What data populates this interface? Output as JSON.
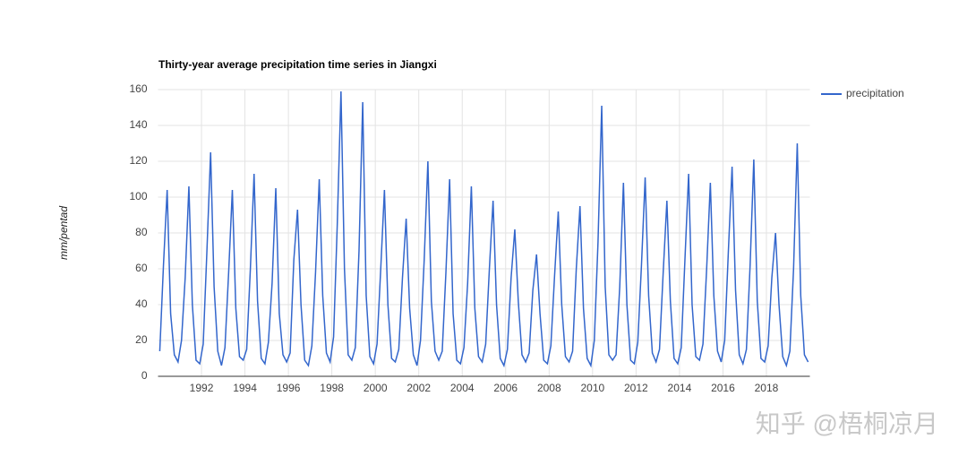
{
  "chart_data": {
    "type": "line",
    "title": "Thirty-year average precipitation time series in Jiangxi",
    "y_label": "mm/pentad",
    "watermark": "知乎 @梧桐凉月",
    "xlim": [
      1990,
      2020
    ],
    "xticks": [
      1992,
      1994,
      1996,
      1998,
      2000,
      2002,
      2004,
      2006,
      2008,
      2010,
      2012,
      2014,
      2016,
      2018
    ],
    "ylim": [
      0,
      160
    ],
    "yticks": [
      0,
      20,
      40,
      60,
      80,
      100,
      120,
      140,
      160
    ],
    "grid": true,
    "legend": "right",
    "x": [
      1990.08,
      1990.25,
      1990.42,
      1990.58,
      1990.75,
      1990.92,
      1991.08,
      1991.25,
      1991.42,
      1991.58,
      1991.75,
      1991.92,
      1992.08,
      1992.25,
      1992.42,
      1992.58,
      1992.75,
      1992.92,
      1993.08,
      1993.25,
      1993.42,
      1993.58,
      1993.75,
      1993.92,
      1994.08,
      1994.25,
      1994.42,
      1994.58,
      1994.75,
      1994.92,
      1995.08,
      1995.25,
      1995.42,
      1995.58,
      1995.75,
      1995.92,
      1996.08,
      1996.25,
      1996.42,
      1996.58,
      1996.75,
      1996.92,
      1997.08,
      1997.25,
      1997.42,
      1997.58,
      1997.75,
      1997.92,
      1998.08,
      1998.25,
      1998.42,
      1998.58,
      1998.75,
      1998.92,
      1999.08,
      1999.25,
      1999.42,
      1999.58,
      1999.75,
      1999.92,
      2000.08,
      2000.25,
      2000.42,
      2000.58,
      2000.75,
      2000.92,
      2001.08,
      2001.25,
      2001.42,
      2001.58,
      2001.75,
      2001.92,
      2002.08,
      2002.25,
      2002.42,
      2002.58,
      2002.75,
      2002.92,
      2003.08,
      2003.25,
      2003.42,
      2003.58,
      2003.75,
      2003.92,
      2004.08,
      2004.25,
      2004.42,
      2004.58,
      2004.75,
      2004.92,
      2005.08,
      2005.25,
      2005.42,
      2005.58,
      2005.75,
      2005.92,
      2006.08,
      2006.25,
      2006.42,
      2006.58,
      2006.75,
      2006.92,
      2007.08,
      2007.25,
      2007.42,
      2007.58,
      2007.75,
      2007.92,
      2008.08,
      2008.25,
      2008.42,
      2008.58,
      2008.75,
      2008.92,
      2009.08,
      2009.25,
      2009.42,
      2009.58,
      2009.75,
      2009.92,
      2010.08,
      2010.25,
      2010.42,
      2010.58,
      2010.75,
      2010.92,
      2011.08,
      2011.25,
      2011.42,
      2011.58,
      2011.75,
      2011.92,
      2012.08,
      2012.25,
      2012.42,
      2012.58,
      2012.75,
      2012.92,
      2013.08,
      2013.25,
      2013.42,
      2013.58,
      2013.75,
      2013.92,
      2014.08,
      2014.25,
      2014.42,
      2014.58,
      2014.75,
      2014.92,
      2015.08,
      2015.25,
      2015.42,
      2015.58,
      2015.75,
      2015.92,
      2016.08,
      2016.25,
      2016.42,
      2016.58,
      2016.75,
      2016.92,
      2017.08,
      2017.25,
      2017.42,
      2017.58,
      2017.75,
      2017.92,
      2018.08,
      2018.25,
      2018.42,
      2018.58,
      2018.75,
      2018.92,
      2019.08,
      2019.25,
      2019.42,
      2019.58,
      2019.75,
      2019.92
    ],
    "series": [
      {
        "name": "precipitation",
        "color": "#3366cc",
        "values": [
          14,
          62,
          104,
          35,
          12,
          8,
          20,
          55,
          106,
          40,
          9,
          7,
          18,
          70,
          125,
          50,
          14,
          6,
          16,
          58,
          104,
          38,
          11,
          9,
          15,
          60,
          113,
          42,
          10,
          7,
          19,
          52,
          105,
          35,
          12,
          8,
          13,
          65,
          93,
          40,
          9,
          6,
          17,
          58,
          110,
          45,
          13,
          8,
          22,
          85,
          159,
          60,
          12,
          9,
          16,
          70,
          153,
          45,
          11,
          7,
          18,
          60,
          104,
          40,
          10,
          8,
          15,
          55,
          88,
          38,
          12,
          6,
          20,
          65,
          120,
          42,
          14,
          9,
          14,
          58,
          110,
          35,
          9,
          7,
          16,
          52,
          106,
          38,
          11,
          8,
          18,
          60,
          98,
          40,
          10,
          6,
          15,
          55,
          82,
          42,
          12,
          8,
          13,
          48,
          68,
          35,
          9,
          7,
          17,
          56,
          92,
          40,
          11,
          8,
          14,
          60,
          95,
          38,
          10,
          6,
          20,
          75,
          151,
          50,
          12,
          9,
          12,
          50,
          108,
          40,
          9,
          7,
          19,
          62,
          111,
          45,
          13,
          8,
          15,
          58,
          98,
          42,
          10,
          7,
          16,
          65,
          113,
          40,
          11,
          9,
          18,
          60,
          108,
          45,
          14,
          8,
          20,
          70,
          117,
          48,
          12,
          7,
          15,
          62,
          121,
          42,
          10,
          8,
          17,
          55,
          80,
          40,
          11,
          6,
          14,
          60,
          130,
          45,
          12,
          8
        ]
      }
    ]
  }
}
